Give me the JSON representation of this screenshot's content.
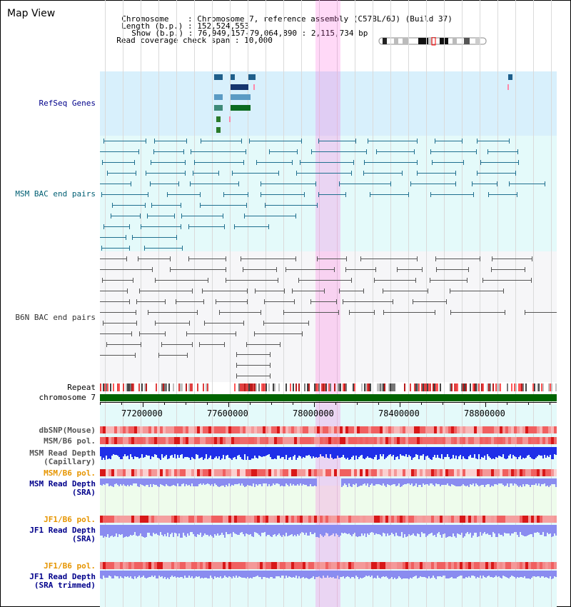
{
  "page": {
    "title": "Map View"
  },
  "info": {
    "chromosome_label": "Chromosome",
    "chromosome_value": "Chromosome 7, reference assembly (C57BL/6J) (Build 37)",
    "length_label": "Length (b.p.)",
    "length_value": "152,524,553",
    "show_label": "Show (b.p.)",
    "show_value": "76,949,157-79,064,890 : 2,115,734 bp",
    "coverage_label": "Read coverage check span",
    "coverage_value": "10,000"
  },
  "tracks": {
    "refseq": "RefSeq Genes",
    "msm_bac": "MSM BAC end pairs",
    "b6n_bac": "B6N BAC end pairs",
    "repeat": "Repeat",
    "chromosome": "chromosome 7",
    "dbsnp": "dbSNP(Mouse)",
    "msm_b6_pol_1": "MSM/B6 pol.",
    "msm_read_depth_cap": "MSM Read Depth\n(Capillary)",
    "msm_b6_pol_2": "MSM/B6 pol.",
    "msm_read_depth_sra": "MSM Read Depth\n(SRA)",
    "jf1_b6_pol_1": "JF1/B6 pol.",
    "jf1_read_depth_sra": "JF1 Read Depth\n(SRA)",
    "jf1_b6_pol_2": "JF1/B6 pol.",
    "jf1_read_depth_trim": "JF1 Read Depth\n(SRA trimmed)"
  },
  "axis": {
    "ticks": [
      "77200000",
      "77600000",
      "78000000",
      "78400000",
      "78800000"
    ]
  },
  "colors": {
    "refseq_bg": "#d8f0fc",
    "bac_bg": "#e4fafa",
    "msm_bac": "#1f6f8f",
    "b6n_bac": "#555555",
    "chromosome": "#006400",
    "highlight": "#ff80e0",
    "pol": "#e83c3c",
    "depth_dark": "#1f2fe8",
    "depth_light": "#8a8cf0",
    "title_blue": "#00008b",
    "title_orange": "#e69500",
    "title_teal": "#005f73"
  }
}
